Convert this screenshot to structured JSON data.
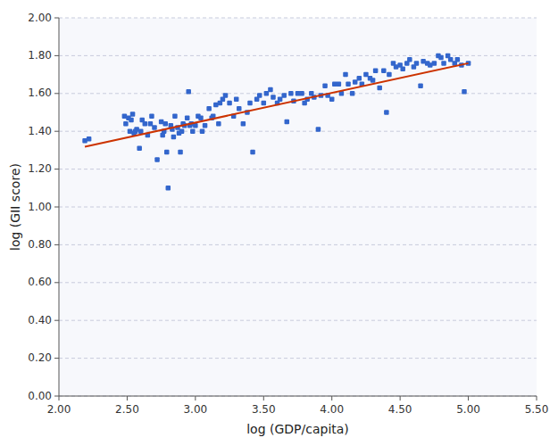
{
  "chart_data": {
    "type": "scatter",
    "xlabel": "log (GDP/capita)",
    "ylabel": "log (GII score)",
    "xlim": [
      2.0,
      5.5
    ],
    "ylim": [
      0.0,
      2.0
    ],
    "xticks": [
      {
        "value": 2.0,
        "label": "2.00"
      },
      {
        "value": 2.5,
        "label": "2.50"
      },
      {
        "value": 3.0,
        "label": "3.00"
      },
      {
        "value": 3.5,
        "label": "3.50"
      },
      {
        "value": 4.0,
        "label": "4.00"
      },
      {
        "value": 4.5,
        "label": "4.50"
      },
      {
        "value": 5.0,
        "label": "5.00"
      },
      {
        "value": 5.5,
        "label": "5.50"
      }
    ],
    "yticks": [
      {
        "value": 0.0,
        "label": "0.00"
      },
      {
        "value": 0.2,
        "label": "0.20"
      },
      {
        "value": 0.4,
        "label": "0.40"
      },
      {
        "value": 0.6,
        "label": "0.60"
      },
      {
        "value": 0.8,
        "label": "0.80"
      },
      {
        "value": 1.0,
        "label": "1.00"
      },
      {
        "value": 1.2,
        "label": "1.20"
      },
      {
        "value": 1.4,
        "label": "1.40"
      },
      {
        "value": 1.6,
        "label": "1.60"
      },
      {
        "value": 1.8,
        "label": "1.80"
      },
      {
        "value": 2.0,
        "label": "2.00"
      }
    ],
    "grid": true,
    "series": [
      {
        "type": "scatter",
        "color": "#3366cc",
        "marker": "square",
        "x": [
          2.19,
          2.22,
          2.48,
          2.49,
          2.51,
          2.52,
          2.53,
          2.54,
          2.55,
          2.56,
          2.57,
          2.59,
          2.6,
          2.61,
          2.63,
          2.65,
          2.67,
          2.68,
          2.7,
          2.72,
          2.75,
          2.76,
          2.77,
          2.78,
          2.79,
          2.8,
          2.82,
          2.83,
          2.84,
          2.85,
          2.87,
          2.88,
          2.89,
          2.9,
          2.91,
          2.92,
          2.94,
          2.95,
          2.96,
          2.97,
          2.98,
          3.0,
          3.02,
          3.04,
          3.05,
          3.07,
          3.1,
          3.12,
          3.13,
          3.15,
          3.17,
          3.18,
          3.2,
          3.22,
          3.25,
          3.28,
          3.3,
          3.32,
          3.35,
          3.38,
          3.4,
          3.42,
          3.45,
          3.47,
          3.5,
          3.52,
          3.55,
          3.57,
          3.6,
          3.62,
          3.65,
          3.67,
          3.7,
          3.72,
          3.75,
          3.78,
          3.8,
          3.82,
          3.85,
          3.87,
          3.9,
          3.92,
          3.95,
          3.97,
          4.0,
          4.02,
          4.05,
          4.07,
          4.1,
          4.12,
          4.15,
          4.17,
          4.2,
          4.22,
          4.25,
          4.28,
          4.3,
          4.32,
          4.35,
          4.38,
          4.4,
          4.42,
          4.45,
          4.47,
          4.5,
          4.52,
          4.55,
          4.57,
          4.6,
          4.62,
          4.65,
          4.67,
          4.7,
          4.72,
          4.75,
          4.78,
          4.8,
          4.82,
          4.85,
          4.87,
          4.9,
          4.92,
          4.95,
          4.97,
          5.0
        ],
        "values": [
          1.35,
          1.36,
          1.48,
          1.44,
          1.47,
          1.4,
          1.46,
          1.49,
          1.39,
          1.4,
          1.41,
          1.31,
          1.4,
          1.46,
          1.44,
          1.38,
          1.44,
          1.48,
          1.42,
          1.25,
          1.45,
          1.38,
          1.4,
          1.44,
          1.29,
          1.1,
          1.43,
          1.41,
          1.37,
          1.48,
          1.42,
          1.39,
          1.29,
          1.4,
          1.44,
          1.43,
          1.47,
          1.61,
          1.43,
          1.44,
          1.4,
          1.43,
          1.48,
          1.47,
          1.4,
          1.43,
          1.52,
          1.47,
          1.48,
          1.54,
          1.44,
          1.55,
          1.57,
          1.59,
          1.55,
          1.48,
          1.57,
          1.52,
          1.44,
          1.5,
          1.55,
          1.29,
          1.57,
          1.59,
          1.55,
          1.6,
          1.62,
          1.58,
          1.55,
          1.57,
          1.59,
          1.45,
          1.6,
          1.56,
          1.6,
          1.6,
          1.55,
          1.57,
          1.6,
          1.58,
          1.41,
          1.59,
          1.64,
          1.59,
          1.57,
          1.65,
          1.65,
          1.6,
          1.7,
          1.65,
          1.6,
          1.66,
          1.68,
          1.65,
          1.7,
          1.68,
          1.67,
          1.72,
          1.63,
          1.72,
          1.5,
          1.7,
          1.76,
          1.74,
          1.75,
          1.73,
          1.76,
          1.78,
          1.74,
          1.76,
          1.64,
          1.77,
          1.76,
          1.75,
          1.76,
          1.8,
          1.79,
          1.76,
          1.8,
          1.78,
          1.76,
          1.78,
          1.75,
          1.61,
          1.76
        ]
      },
      {
        "type": "line",
        "color": "#cc3300",
        "x": [
          2.19,
          5.0
        ],
        "values": [
          1.31883,
          1.76
        ]
      }
    ]
  }
}
